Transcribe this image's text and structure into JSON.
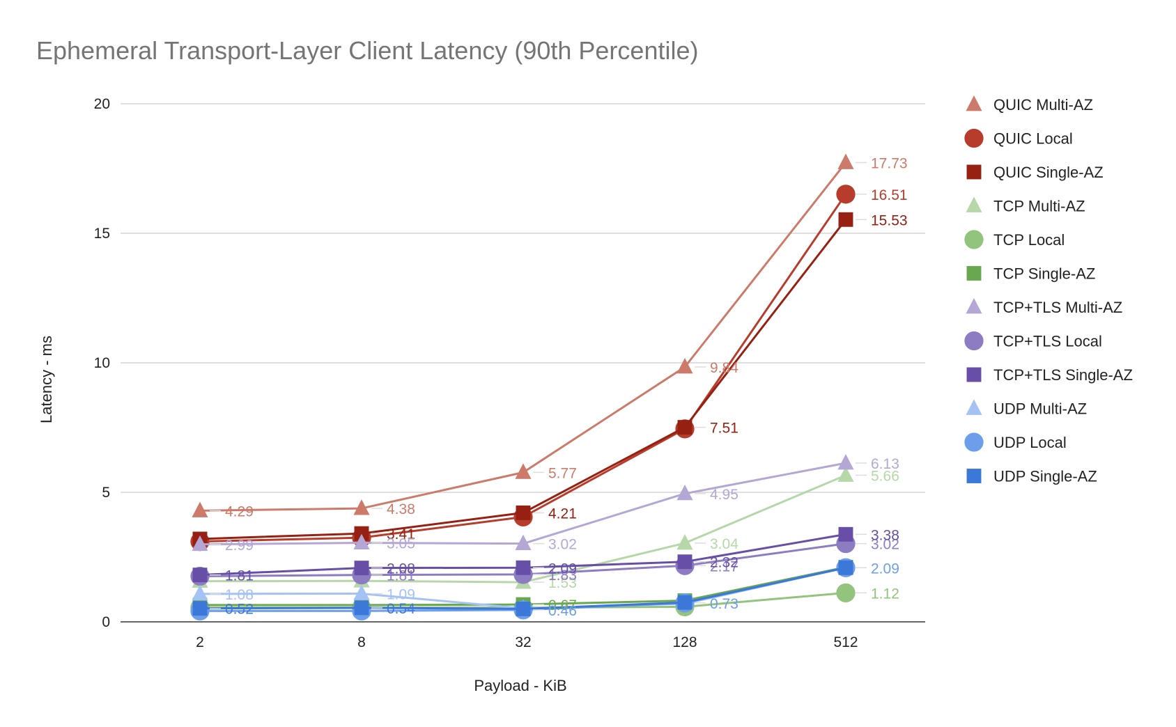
{
  "chart_data": {
    "type": "line",
    "title": "Ephemeral Transport-Layer Client Latency (90th Percentile)",
    "xlabel": "Payload - KiB",
    "ylabel": "Latency - ms",
    "categories": [
      "2",
      "8",
      "32",
      "128",
      "512"
    ],
    "ylim": [
      0,
      20
    ],
    "yticks": [
      0,
      5,
      10,
      15,
      20
    ],
    "grid": true,
    "legend_position": "right",
    "series": [
      {
        "name": "QUIC Multi-AZ",
        "color": "#cc7a6a",
        "marker": "triangle",
        "values": [
          4.29,
          4.38,
          5.77,
          9.84,
          17.73
        ],
        "labels": [
          "4.29",
          "4.38",
          "5.77",
          "9.84",
          "17.73"
        ]
      },
      {
        "name": "QUIC Local",
        "color": "#b83c2b",
        "marker": "circle",
        "values": [
          3.1,
          3.25,
          4.05,
          7.45,
          16.51
        ],
        "labels": [
          "",
          "",
          "",
          "",
          "16.51"
        ]
      },
      {
        "name": "QUIC Single-AZ",
        "color": "#962112",
        "marker": "square",
        "values": [
          3.2,
          3.41,
          4.21,
          7.51,
          15.53
        ],
        "labels": [
          "",
          "3.41",
          "4.21",
          "7.51",
          "15.53"
        ]
      },
      {
        "name": "TCP Multi-AZ",
        "color": "#b6d7a8",
        "marker": "triangle",
        "values": [
          1.57,
          1.58,
          1.53,
          3.04,
          5.66
        ],
        "labels": [
          "",
          "",
          "1.53",
          "3.04",
          "5.66"
        ]
      },
      {
        "name": "TCP Local",
        "color": "#93c47d",
        "marker": "circle",
        "values": [
          0.55,
          0.55,
          0.55,
          0.58,
          1.12
        ],
        "labels": [
          "",
          "",
          "",
          "",
          "1.12"
        ]
      },
      {
        "name": "TCP Single-AZ",
        "color": "#6aa84f",
        "marker": "square",
        "values": [
          0.65,
          0.65,
          0.67,
          0.82,
          2.11
        ],
        "labels": [
          "",
          "",
          "0.67",
          "",
          ""
        ]
      },
      {
        "name": "TCP+TLS Multi-AZ",
        "color": "#b4a7d6",
        "marker": "triangle",
        "values": [
          2.99,
          3.05,
          3.02,
          4.95,
          6.13
        ],
        "labels": [
          "2.99",
          "3.05",
          "3.02",
          "4.95",
          "6.13"
        ]
      },
      {
        "name": "TCP+TLS Local",
        "color": "#8e7cc3",
        "marker": "circle",
        "values": [
          1.76,
          1.81,
          1.83,
          2.17,
          3.02
        ],
        "labels": [
          "",
          "1.81",
          "1.83",
          "2.17",
          "3.02"
        ]
      },
      {
        "name": "TCP+TLS Single-AZ",
        "color": "#674ea7",
        "marker": "square",
        "values": [
          1.81,
          2.08,
          2.09,
          2.32,
          3.38
        ],
        "labels": [
          "1.81",
          "2.08",
          "2.09",
          "2.32",
          "3.38"
        ]
      },
      {
        "name": "UDP Multi-AZ",
        "color": "#a4c2f4",
        "marker": "triangle",
        "values": [
          1.08,
          1.09,
          0.52,
          0.7,
          2.09
        ],
        "labels": [
          "1.08",
          "1.09",
          "",
          "",
          ""
        ]
      },
      {
        "name": "UDP Local",
        "color": "#6d9eeb",
        "marker": "circle",
        "values": [
          0.42,
          0.42,
          0.46,
          0.73,
          2.09
        ],
        "labels": [
          "",
          "",
          "0.46",
          "0.73",
          "2.09"
        ]
      },
      {
        "name": "UDP Single-AZ",
        "color": "#3c78d8",
        "marker": "square",
        "values": [
          0.52,
          0.54,
          0.5,
          0.75,
          2.09
        ],
        "labels": [
          "0.52",
          "0.54",
          "",
          "",
          ""
        ]
      }
    ]
  }
}
